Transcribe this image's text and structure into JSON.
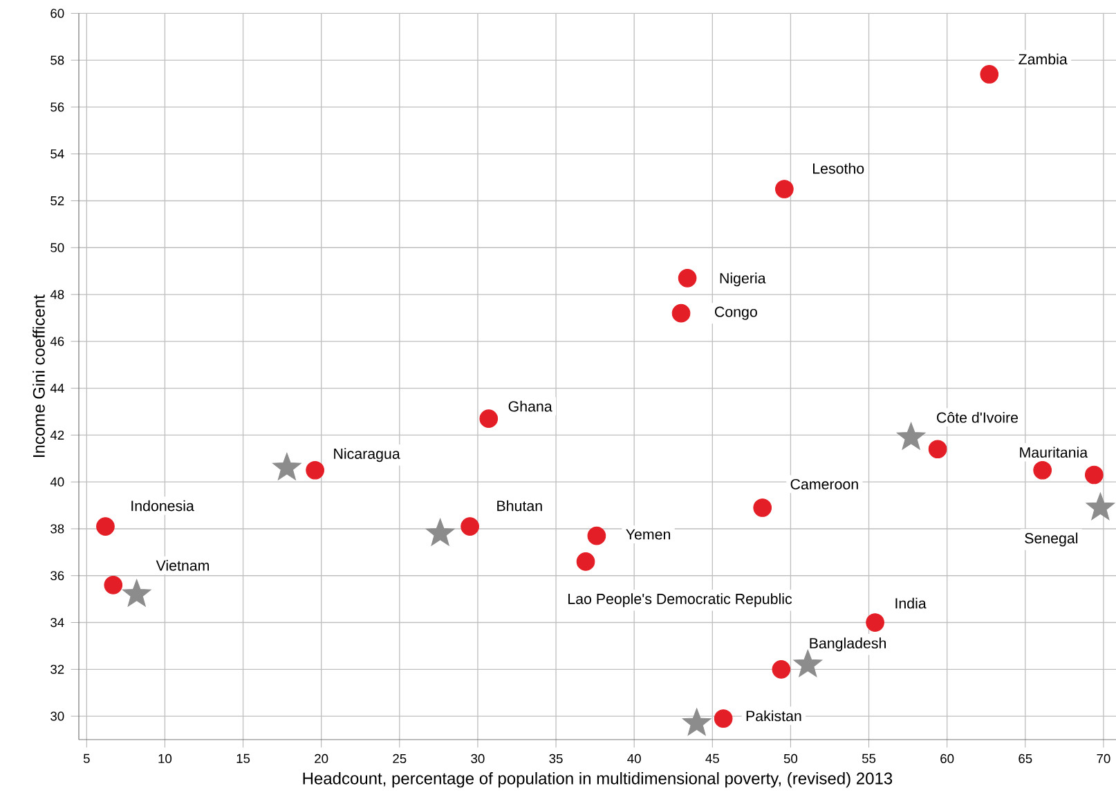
{
  "chart_data": {
    "type": "scatter",
    "xlabel": "Headcount, percentage of population in multidimensional poverty, (revised) 2013",
    "ylabel": "Income Gini coefficent",
    "xlim": [
      4.5,
      70.8
    ],
    "ylim": [
      29,
      60
    ],
    "xticks": [
      5,
      10,
      15,
      20,
      25,
      30,
      35,
      40,
      45,
      50,
      55,
      60,
      65,
      70
    ],
    "yticks": [
      30,
      32,
      34,
      36,
      38,
      40,
      42,
      44,
      46,
      48,
      50,
      52,
      54,
      56,
      58,
      60
    ],
    "grid": true,
    "series": [
      {
        "color": "#e41e26",
        "marker": "circle",
        "x": [
          62.7,
          49.6,
          43.4,
          43.0,
          30.7,
          19.6,
          59.4,
          66.1,
          69.4,
          6.2,
          6.7,
          29.5,
          48.2,
          37.6,
          36.9,
          55.4,
          49.4,
          45.7
        ],
        "values": [
          57.4,
          52.5,
          48.7,
          47.2,
          42.7,
          40.5,
          41.4,
          40.5,
          40.3,
          38.1,
          35.6,
          38.1,
          38.9,
          37.7,
          36.6,
          34.0,
          32.0,
          29.9
        ]
      },
      {
        "color": "#8c8c8c",
        "marker": "star",
        "x": [
          17.8,
          27.6,
          8.2,
          57.7,
          69.8,
          51.1,
          44.0
        ],
        "values": [
          40.6,
          37.8,
          35.2,
          41.9,
          38.9,
          32.2,
          29.7
        ]
      }
    ],
    "annotations": [
      {
        "text": "Zambia",
        "x": 62.7,
        "y": 57.4
      },
      {
        "text": "Lesotho",
        "x": 49.6,
        "y": 52.5
      },
      {
        "text": "Nigeria",
        "x": 43.4,
        "y": 48.7
      },
      {
        "text": "Congo",
        "x": 43.0,
        "y": 47.2
      },
      {
        "text": "Ghana",
        "x": 30.7,
        "y": 42.7
      },
      {
        "text": "Nicaragua",
        "x": 19.6,
        "y": 40.5
      },
      {
        "text": "Côte d'Ivoire",
        "x": 59.4,
        "y": 41.4
      },
      {
        "text": "Mauritania",
        "x": 66.1,
        "y": 40.5
      },
      {
        "text": "Senegal",
        "x": 69.8,
        "y": 38.9
      },
      {
        "text": "Indonesia",
        "x": 6.2,
        "y": 38.1
      },
      {
        "text": "Vietnam",
        "x": 8.2,
        "y": 35.2
      },
      {
        "text": "Bhutan",
        "x": 29.5,
        "y": 38.1
      },
      {
        "text": "Cameroon",
        "x": 48.2,
        "y": 38.9
      },
      {
        "text": "Yemen",
        "x": 37.6,
        "y": 37.7
      },
      {
        "text": "Lao People's Democratic Republic",
        "x": 36.9,
        "y": 36.6
      },
      {
        "text": "India",
        "x": 55.4,
        "y": 34.0
      },
      {
        "text": "Bangladesh",
        "x": 49.4,
        "y": 32.0
      },
      {
        "text": "Pakistan",
        "x": 45.7,
        "y": 29.9
      }
    ]
  }
}
